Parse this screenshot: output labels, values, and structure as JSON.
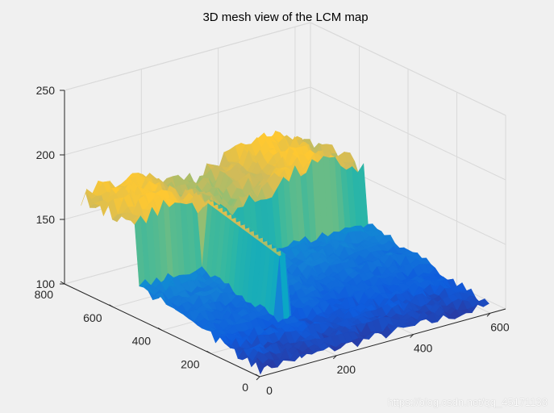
{
  "chart_data": {
    "type": "surface",
    "title": "3D mesh view of the LCM map",
    "x": {
      "ticks": [
        0,
        200,
        400,
        600
      ],
      "range": [
        0,
        640
      ]
    },
    "y": {
      "ticks": [
        0,
        200,
        400,
        600,
        800
      ],
      "range": [
        0,
        800
      ]
    },
    "z": {
      "ticks": [
        100,
        150,
        200,
        250
      ],
      "range": [
        100,
        250
      ]
    },
    "grid": true,
    "colormap": "parula",
    "colors": [
      "#352a87",
      "#0f5cdd",
      "#1481d6",
      "#06a4ca",
      "#2eb7a4",
      "#87bf77",
      "#d1bb59",
      "#fec832"
    ],
    "surface_profile": {
      "description_values": {
        "plateau_height": 170,
        "plateau_y_start": 510,
        "floor_height_low_y": 105,
        "floor_height_high_y": 125,
        "ridge_x": 190,
        "ridge_height": 175
      }
    }
  },
  "watermark": "https://blog.csdn.net/qq_45171138"
}
